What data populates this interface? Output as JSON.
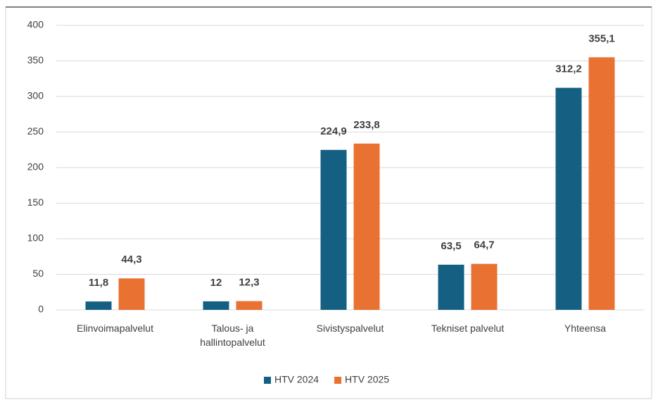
{
  "chart_data": {
    "type": "bar",
    "categories": [
      "Elinvoimapalvelut",
      "Talous- ja hallintopalvelut",
      "Sivistyspalvelut",
      "Tekniset palvelut",
      "Yhteensa"
    ],
    "series": [
      {
        "name": "HTV 2024",
        "color": "#156082",
        "values": [
          11.8,
          12,
          224.9,
          63.5,
          312.2
        ],
        "value_labels": [
          "11,8",
          "12",
          "224,9",
          "63,5",
          "312,2"
        ]
      },
      {
        "name": "HTV 2025",
        "color": "#E97132",
        "values": [
          44.3,
          12.3,
          233.8,
          64.7,
          355.1
        ],
        "value_labels": [
          "44,3",
          "12,3",
          "233,8",
          "64,7",
          "355,1"
        ]
      }
    ],
    "ylim": [
      0,
      400
    ],
    "yticks": [
      0,
      50,
      100,
      150,
      200,
      250,
      300,
      350,
      400
    ],
    "grid": true,
    "legend": "bottom"
  }
}
